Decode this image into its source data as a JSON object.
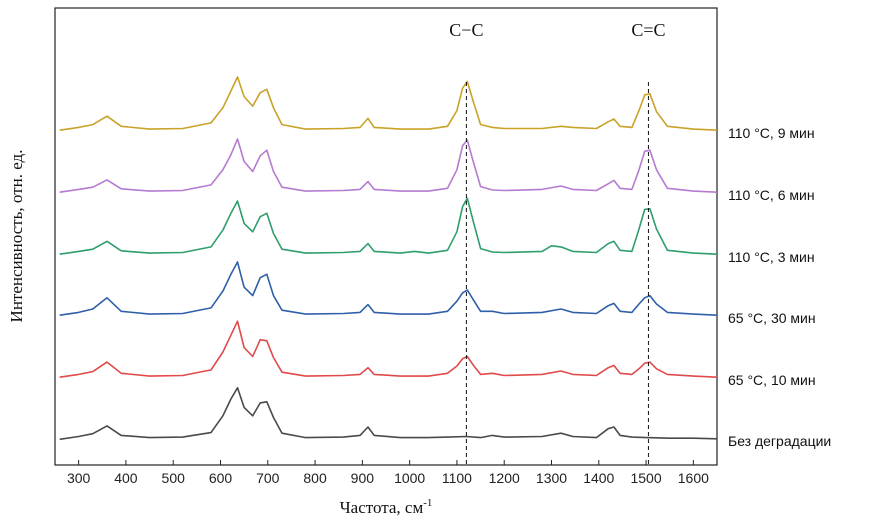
{
  "chart_data": {
    "type": "line",
    "xlabel": "Частота, см",
    "xlabel_sup": "-1",
    "ylabel": "Интенсивность, отн. ед.",
    "xlim": [
      250,
      1650
    ],
    "xticks": [
      300,
      400,
      500,
      600,
      700,
      800,
      900,
      1000,
      1100,
      1200,
      1300,
      1400,
      1500,
      1600
    ],
    "y_ticks_shown": false,
    "grid": false,
    "legend": "labels placed at right end of each curve",
    "markers": [
      {
        "label": "C−C",
        "x": 1120
      },
      {
        "label": "C=C",
        "x": 1505
      }
    ],
    "series": [
      {
        "name": "110 °C, 9 мин",
        "color": "#c9a227",
        "points": [
          [
            260,
            0.05
          ],
          [
            300,
            0.1
          ],
          [
            330,
            0.15
          ],
          [
            360,
            0.3
          ],
          [
            390,
            0.12
          ],
          [
            450,
            0.07
          ],
          [
            520,
            0.08
          ],
          [
            580,
            0.18
          ],
          [
            605,
            0.45
          ],
          [
            622,
            0.75
          ],
          [
            636,
            1.0
          ],
          [
            650,
            0.65
          ],
          [
            668,
            0.48
          ],
          [
            684,
            0.72
          ],
          [
            698,
            0.78
          ],
          [
            712,
            0.45
          ],
          [
            730,
            0.15
          ],
          [
            780,
            0.07
          ],
          [
            860,
            0.08
          ],
          [
            895,
            0.1
          ],
          [
            912,
            0.26
          ],
          [
            925,
            0.1
          ],
          [
            980,
            0.07
          ],
          [
            1040,
            0.07
          ],
          [
            1080,
            0.12
          ],
          [
            1100,
            0.4
          ],
          [
            1112,
            0.8
          ],
          [
            1122,
            0.92
          ],
          [
            1135,
            0.55
          ],
          [
            1150,
            0.15
          ],
          [
            1175,
            0.1
          ],
          [
            1200,
            0.08
          ],
          [
            1280,
            0.08
          ],
          [
            1320,
            0.12
          ],
          [
            1345,
            0.1
          ],
          [
            1395,
            0.08
          ],
          [
            1420,
            0.2
          ],
          [
            1432,
            0.25
          ],
          [
            1445,
            0.12
          ],
          [
            1470,
            0.1
          ],
          [
            1485,
            0.4
          ],
          [
            1497,
            0.68
          ],
          [
            1508,
            0.7
          ],
          [
            1522,
            0.38
          ],
          [
            1545,
            0.12
          ],
          [
            1600,
            0.07
          ],
          [
            1650,
            0.05
          ]
        ]
      },
      {
        "name": "110 °C, 6 мин",
        "color": "#b57bd0",
        "points": [
          [
            260,
            0.05
          ],
          [
            300,
            0.1
          ],
          [
            330,
            0.14
          ],
          [
            360,
            0.27
          ],
          [
            390,
            0.11
          ],
          [
            450,
            0.07
          ],
          [
            520,
            0.08
          ],
          [
            580,
            0.18
          ],
          [
            605,
            0.45
          ],
          [
            622,
            0.72
          ],
          [
            636,
            1.0
          ],
          [
            650,
            0.6
          ],
          [
            668,
            0.42
          ],
          [
            684,
            0.7
          ],
          [
            698,
            0.8
          ],
          [
            712,
            0.42
          ],
          [
            730,
            0.14
          ],
          [
            780,
            0.07
          ],
          [
            860,
            0.08
          ],
          [
            895,
            0.1
          ],
          [
            912,
            0.24
          ],
          [
            925,
            0.1
          ],
          [
            980,
            0.07
          ],
          [
            1040,
            0.07
          ],
          [
            1080,
            0.12
          ],
          [
            1100,
            0.45
          ],
          [
            1112,
            0.88
          ],
          [
            1122,
            0.98
          ],
          [
            1135,
            0.58
          ],
          [
            1150,
            0.15
          ],
          [
            1175,
            0.09
          ],
          [
            1200,
            0.08
          ],
          [
            1280,
            0.1
          ],
          [
            1320,
            0.16
          ],
          [
            1345,
            0.1
          ],
          [
            1395,
            0.08
          ],
          [
            1420,
            0.2
          ],
          [
            1432,
            0.26
          ],
          [
            1445,
            0.12
          ],
          [
            1470,
            0.1
          ],
          [
            1485,
            0.45
          ],
          [
            1497,
            0.78
          ],
          [
            1508,
            0.8
          ],
          [
            1522,
            0.45
          ],
          [
            1545,
            0.12
          ],
          [
            1600,
            0.07
          ],
          [
            1650,
            0.05
          ]
        ]
      },
      {
        "name": "110 °C, 3 мин",
        "color": "#2e9e6a",
        "points": [
          [
            260,
            0.05
          ],
          [
            300,
            0.1
          ],
          [
            330,
            0.14
          ],
          [
            360,
            0.28
          ],
          [
            390,
            0.11
          ],
          [
            450,
            0.07
          ],
          [
            520,
            0.08
          ],
          [
            580,
            0.18
          ],
          [
            605,
            0.48
          ],
          [
            622,
            0.78
          ],
          [
            636,
            1.0
          ],
          [
            650,
            0.6
          ],
          [
            668,
            0.45
          ],
          [
            684,
            0.72
          ],
          [
            698,
            0.78
          ],
          [
            712,
            0.42
          ],
          [
            730,
            0.14
          ],
          [
            780,
            0.07
          ],
          [
            860,
            0.08
          ],
          [
            895,
            0.1
          ],
          [
            912,
            0.24
          ],
          [
            925,
            0.1
          ],
          [
            980,
            0.07
          ],
          [
            1010,
            0.1
          ],
          [
            1040,
            0.07
          ],
          [
            1080,
            0.12
          ],
          [
            1100,
            0.45
          ],
          [
            1112,
            0.9
          ],
          [
            1122,
            1.05
          ],
          [
            1135,
            0.62
          ],
          [
            1150,
            0.15
          ],
          [
            1175,
            0.09
          ],
          [
            1200,
            0.08
          ],
          [
            1280,
            0.1
          ],
          [
            1300,
            0.2
          ],
          [
            1320,
            0.18
          ],
          [
            1345,
            0.1
          ],
          [
            1395,
            0.08
          ],
          [
            1420,
            0.24
          ],
          [
            1432,
            0.28
          ],
          [
            1445,
            0.12
          ],
          [
            1470,
            0.1
          ],
          [
            1485,
            0.5
          ],
          [
            1497,
            0.85
          ],
          [
            1508,
            0.86
          ],
          [
            1522,
            0.5
          ],
          [
            1545,
            0.12
          ],
          [
            1600,
            0.07
          ],
          [
            1650,
            0.05
          ]
        ]
      },
      {
        "name": "65 °C, 30 мин",
        "color": "#2f5fa8",
        "points": [
          [
            260,
            0.05
          ],
          [
            300,
            0.1
          ],
          [
            330,
            0.16
          ],
          [
            360,
            0.36
          ],
          [
            390,
            0.12
          ],
          [
            450,
            0.07
          ],
          [
            520,
            0.08
          ],
          [
            580,
            0.18
          ],
          [
            605,
            0.48
          ],
          [
            622,
            0.78
          ],
          [
            636,
            1.0
          ],
          [
            650,
            0.55
          ],
          [
            668,
            0.4
          ],
          [
            684,
            0.72
          ],
          [
            698,
            0.78
          ],
          [
            712,
            0.4
          ],
          [
            730,
            0.14
          ],
          [
            780,
            0.07
          ],
          [
            860,
            0.08
          ],
          [
            895,
            0.1
          ],
          [
            912,
            0.24
          ],
          [
            925,
            0.1
          ],
          [
            980,
            0.07
          ],
          [
            1040,
            0.07
          ],
          [
            1080,
            0.12
          ],
          [
            1100,
            0.3
          ],
          [
            1112,
            0.45
          ],
          [
            1122,
            0.5
          ],
          [
            1135,
            0.32
          ],
          [
            1150,
            0.12
          ],
          [
            1175,
            0.12
          ],
          [
            1200,
            0.08
          ],
          [
            1280,
            0.1
          ],
          [
            1320,
            0.16
          ],
          [
            1345,
            0.1
          ],
          [
            1395,
            0.08
          ],
          [
            1420,
            0.22
          ],
          [
            1432,
            0.26
          ],
          [
            1445,
            0.12
          ],
          [
            1470,
            0.1
          ],
          [
            1485,
            0.25
          ],
          [
            1497,
            0.36
          ],
          [
            1508,
            0.4
          ],
          [
            1522,
            0.25
          ],
          [
            1545,
            0.1
          ],
          [
            1600,
            0.07
          ],
          [
            1650,
            0.05
          ]
        ]
      },
      {
        "name": "65 °C, 10 мин",
        "color": "#e04a4a",
        "points": [
          [
            260,
            0.05
          ],
          [
            300,
            0.1
          ],
          [
            330,
            0.15
          ],
          [
            360,
            0.32
          ],
          [
            390,
            0.12
          ],
          [
            450,
            0.07
          ],
          [
            520,
            0.08
          ],
          [
            580,
            0.18
          ],
          [
            605,
            0.5
          ],
          [
            622,
            0.8
          ],
          [
            636,
            1.05
          ],
          [
            650,
            0.58
          ],
          [
            668,
            0.42
          ],
          [
            684,
            0.72
          ],
          [
            698,
            0.7
          ],
          [
            712,
            0.4
          ],
          [
            730,
            0.14
          ],
          [
            780,
            0.07
          ],
          [
            860,
            0.08
          ],
          [
            895,
            0.1
          ],
          [
            912,
            0.22
          ],
          [
            925,
            0.1
          ],
          [
            980,
            0.07
          ],
          [
            1040,
            0.07
          ],
          [
            1080,
            0.12
          ],
          [
            1100,
            0.25
          ],
          [
            1112,
            0.38
          ],
          [
            1122,
            0.42
          ],
          [
            1135,
            0.26
          ],
          [
            1150,
            0.1
          ],
          [
            1175,
            0.12
          ],
          [
            1200,
            0.08
          ],
          [
            1280,
            0.1
          ],
          [
            1320,
            0.16
          ],
          [
            1345,
            0.1
          ],
          [
            1395,
            0.08
          ],
          [
            1420,
            0.22
          ],
          [
            1432,
            0.26
          ],
          [
            1445,
            0.12
          ],
          [
            1470,
            0.1
          ],
          [
            1485,
            0.2
          ],
          [
            1497,
            0.3
          ],
          [
            1508,
            0.32
          ],
          [
            1522,
            0.2
          ],
          [
            1545,
            0.1
          ],
          [
            1600,
            0.07
          ],
          [
            1650,
            0.05
          ]
        ]
      },
      {
        "name": "Без деградации",
        "color": "#4a4a4a",
        "points": [
          [
            260,
            0.03
          ],
          [
            300,
            0.08
          ],
          [
            330,
            0.13
          ],
          [
            360,
            0.27
          ],
          [
            390,
            0.1
          ],
          [
            450,
            0.06
          ],
          [
            520,
            0.07
          ],
          [
            580,
            0.15
          ],
          [
            605,
            0.45
          ],
          [
            622,
            0.75
          ],
          [
            636,
            0.95
          ],
          [
            650,
            0.6
          ],
          [
            668,
            0.45
          ],
          [
            684,
            0.68
          ],
          [
            698,
            0.7
          ],
          [
            712,
            0.42
          ],
          [
            730,
            0.14
          ],
          [
            780,
            0.06
          ],
          [
            860,
            0.07
          ],
          [
            895,
            0.1
          ],
          [
            912,
            0.25
          ],
          [
            925,
            0.1
          ],
          [
            980,
            0.06
          ],
          [
            1040,
            0.06
          ],
          [
            1080,
            0.07
          ],
          [
            1120,
            0.08
          ],
          [
            1150,
            0.06
          ],
          [
            1175,
            0.1
          ],
          [
            1200,
            0.07
          ],
          [
            1280,
            0.08
          ],
          [
            1320,
            0.14
          ],
          [
            1345,
            0.08
          ],
          [
            1395,
            0.06
          ],
          [
            1420,
            0.22
          ],
          [
            1432,
            0.25
          ],
          [
            1445,
            0.1
          ],
          [
            1470,
            0.07
          ],
          [
            1500,
            0.06
          ],
          [
            1550,
            0.05
          ],
          [
            1600,
            0.05
          ],
          [
            1650,
            0.04
          ]
        ]
      }
    ]
  }
}
